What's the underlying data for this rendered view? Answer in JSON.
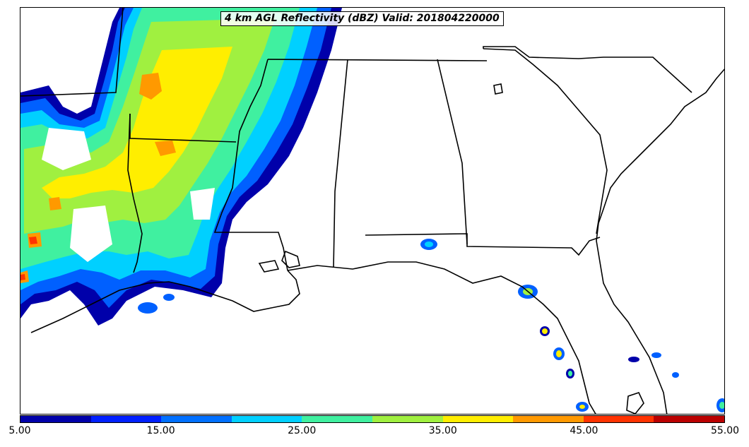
{
  "title": "4 km AGL Reflectivity (dBZ) Valid: 201804220000",
  "colorbar": {
    "colors": [
      "#0000aa",
      "#0020ff",
      "#0070ff",
      "#00d0ff",
      "#40f0a0",
      "#a0f040",
      "#ffee00",
      "#ff9900",
      "#ff3300",
      "#bb0000"
    ],
    "tick_labels": [
      "5.00",
      "15.00",
      "25.00",
      "35.00",
      "45.00",
      "55.00"
    ]
  }
}
